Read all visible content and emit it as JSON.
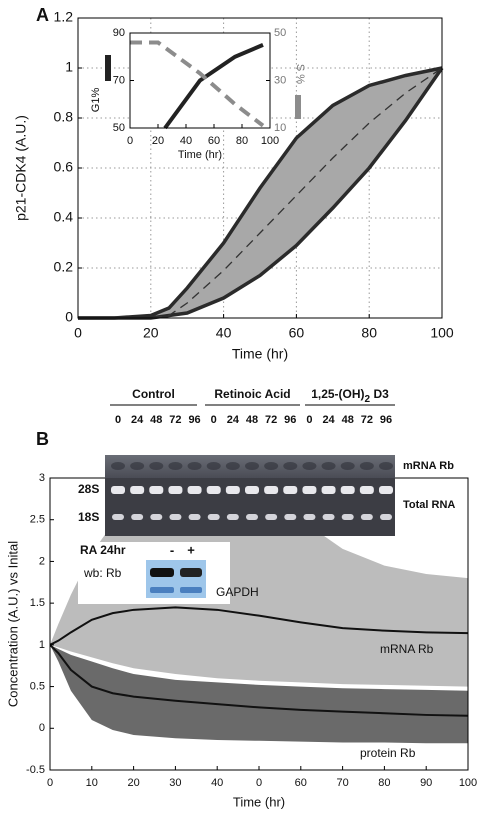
{
  "chart_data": [
    {
      "type": "band",
      "label": "A",
      "xlabel": "Time (hr)",
      "ylabel": "p21-CDK4 (A.U.)",
      "x": [
        0,
        10,
        20,
        25,
        30,
        40,
        50,
        60,
        70,
        80,
        90,
        100
      ],
      "xlim": [
        0,
        100
      ],
      "xticks": [
        0,
        20,
        40,
        60,
        80,
        100
      ],
      "ylim": [
        0,
        1.2
      ],
      "yticks": [
        0,
        0.2,
        0.4,
        0.6,
        0.8,
        1,
        1.2
      ],
      "grid": true,
      "bands": [
        {
          "upper": [
            0,
            0,
            0.01,
            0.04,
            0.12,
            0.3,
            0.52,
            0.72,
            0.85,
            0.93,
            0.97,
            1
          ],
          "lower": [
            0,
            0,
            0,
            0.01,
            0.02,
            0.08,
            0.17,
            0.29,
            0.44,
            0.6,
            0.79,
            1
          ],
          "color": "#a8a8a8",
          "edge_color": "#2b2b2b"
        }
      ],
      "series": [
        {
          "values": [
            0,
            0,
            0,
            0.01,
            0.06,
            0.19,
            0.34,
            0.49,
            0.64,
            0.78,
            0.9,
            1
          ],
          "color": "#333333",
          "dash": true
        }
      ]
    },
    {
      "type": "line",
      "xlabel": "Time (hr)",
      "ylabel": "G1%",
      "y2label": "S %",
      "xlim": [
        0,
        100
      ],
      "xticks": [
        0,
        20,
        40,
        60,
        80,
        100
      ],
      "ylim": [
        50,
        90
      ],
      "yticks": [
        50,
        70,
        90
      ],
      "y2lim": [
        10,
        50
      ],
      "y2ticks": [
        10,
        30,
        50
      ],
      "series": [
        {
          "x": [
            25,
            50,
            75,
            95
          ],
          "values": [
            50,
            70,
            80,
            85
          ],
          "color": "#222222"
        },
        {
          "x": [
            0,
            20,
            50,
            75,
            95
          ],
          "values": [
            46,
            46,
            33,
            20,
            11
          ],
          "color": "#8c8c8c",
          "dash": true,
          "axis": "y2"
        }
      ]
    },
    {
      "type": "band",
      "label": "B",
      "xlabel": "Time (hr)",
      "ylabel": "Concentration (A.U.) vs Inital",
      "x": [
        0,
        2,
        5,
        10,
        15,
        20,
        30,
        40,
        50,
        60,
        70,
        80,
        90,
        100
      ],
      "xlim": [
        0,
        100
      ],
      "xticks": [
        0,
        10,
        20,
        30,
        40,
        {
          "value": 50,
          "label": "0"
        },
        60,
        70,
        80,
        90,
        100
      ],
      "ylim": [
        -0.5,
        3
      ],
      "yticks": [
        -0.5,
        0,
        0.5,
        1,
        1.5,
        2,
        2.5,
        3
      ],
      "grid": false,
      "bands": [
        {
          "upper": [
            1,
            1.25,
            1.6,
            2.1,
            2.45,
            2.7,
            2.95,
            3,
            2.8,
            2.5,
            2.15,
            1.95,
            1.85,
            1.8
          ],
          "lower": [
            1,
            0.97,
            0.92,
            0.85,
            0.78,
            0.72,
            0.65,
            0.6,
            0.57,
            0.55,
            0.53,
            0.52,
            0.51,
            0.5
          ],
          "color": "#bcbcbc"
        },
        {
          "upper": [
            1,
            0.95,
            0.88,
            0.8,
            0.72,
            0.65,
            0.58,
            0.55,
            0.52,
            0.5,
            0.48,
            0.47,
            0.46,
            0.45
          ],
          "lower": [
            1,
            0.8,
            0.45,
            0.1,
            -0.02,
            -0.08,
            -0.12,
            -0.14,
            -0.15,
            -0.16,
            -0.17,
            -0.17,
            -0.18,
            -0.18
          ],
          "color": "#6a6a6a"
        }
      ],
      "series": [
        {
          "values": [
            1,
            1.05,
            1.15,
            1.3,
            1.38,
            1.42,
            1.45,
            1.42,
            1.35,
            1.27,
            1.2,
            1.17,
            1.15,
            1.14
          ],
          "color": "#111111",
          "annotation": "mRNA Rb"
        },
        {
          "values": [
            1,
            0.9,
            0.7,
            0.5,
            0.42,
            0.38,
            0.33,
            0.29,
            0.25,
            0.22,
            0.2,
            0.18,
            0.16,
            0.15
          ],
          "color": "#111111",
          "annotation": "protein Rb"
        }
      ]
    }
  ],
  "blot": {
    "groups": [
      "Control",
      "Retinoic Acid",
      {
        "text": "1,25-(OH)",
        "sub": "2",
        "tail": " D3"
      }
    ],
    "lanes": [
      "0",
      "24",
      "48",
      "72",
      "96",
      "0",
      "24",
      "48",
      "72",
      "96",
      "0",
      "24",
      "48",
      "72",
      "96"
    ],
    "rows": [
      "mRNA Rb",
      "Total RNA"
    ],
    "bands": [
      "28S",
      "18S"
    ],
    "western": {
      "header": "RA 24hr",
      "conditions": [
        "-",
        "+"
      ],
      "rows": [
        "wb: Rb",
        "GAPDH"
      ]
    }
  }
}
